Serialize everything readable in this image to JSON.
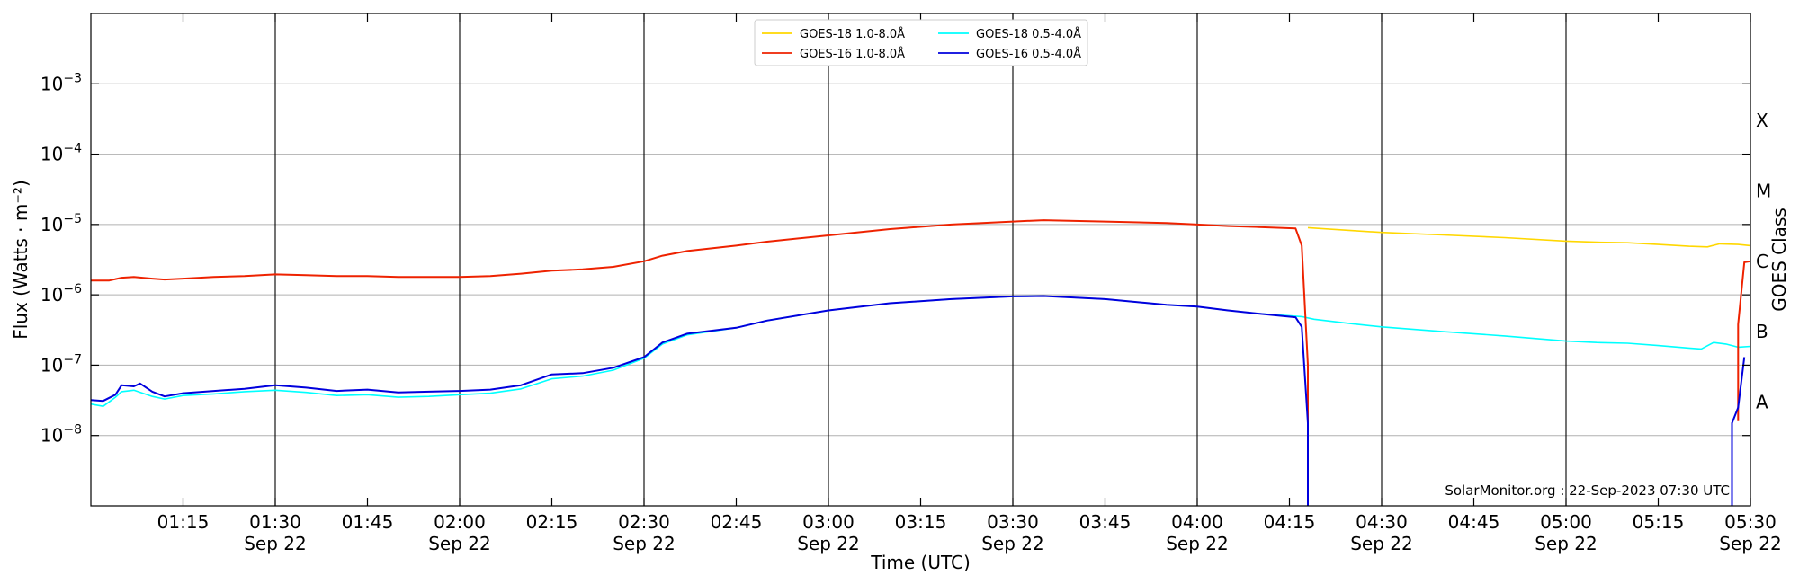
{
  "chart_data": {
    "type": "line",
    "xlabel": "Time (UTC)",
    "ylabel": "Flux (Watts · m⁻²)",
    "right_ylabel": "GOES Class",
    "credit": "SolarMonitor.org : 22-Sep-2023 07:30 UTC",
    "x_range": [
      "01:00",
      "05:30"
    ],
    "ylim": [
      1e-09,
      0.01
    ],
    "yscale": "log",
    "grid": "horizontal gridlines at each decade; vertical lines at labeled 30-minute marks",
    "legend_position": "top-center",
    "y_ticks": [
      {
        "value": 1e-08,
        "base": "10",
        "exp": "−8"
      },
      {
        "value": 1e-07,
        "base": "10",
        "exp": "−7"
      },
      {
        "value": 1e-06,
        "base": "10",
        "exp": "−6"
      },
      {
        "value": 1e-05,
        "base": "10",
        "exp": "−5"
      },
      {
        "value": 0.0001,
        "base": "10",
        "exp": "−4"
      },
      {
        "value": 0.001,
        "base": "10",
        "exp": "−3"
      }
    ],
    "x_ticks": [
      {
        "time": "01:15",
        "label": "01:15",
        "date": ""
      },
      {
        "time": "01:30",
        "label": "01:30",
        "date": "Sep 22"
      },
      {
        "time": "01:45",
        "label": "01:45",
        "date": ""
      },
      {
        "time": "02:00",
        "label": "02:00",
        "date": "Sep 22"
      },
      {
        "time": "02:15",
        "label": "02:15",
        "date": ""
      },
      {
        "time": "02:30",
        "label": "02:30",
        "date": "Sep 22"
      },
      {
        "time": "02:45",
        "label": "02:45",
        "date": ""
      },
      {
        "time": "03:00",
        "label": "03:00",
        "date": "Sep 22"
      },
      {
        "time": "03:15",
        "label": "03:15",
        "date": ""
      },
      {
        "time": "03:30",
        "label": "03:30",
        "date": "Sep 22"
      },
      {
        "time": "03:45",
        "label": "03:45",
        "date": ""
      },
      {
        "time": "04:00",
        "label": "04:00",
        "date": "Sep 22"
      },
      {
        "time": "04:15",
        "label": "04:15",
        "date": ""
      },
      {
        "time": "04:30",
        "label": "04:30",
        "date": "Sep 22"
      },
      {
        "time": "04:45",
        "label": "04:45",
        "date": ""
      },
      {
        "time": "05:00",
        "label": "05:00",
        "date": "Sep 22"
      },
      {
        "time": "05:15",
        "label": "05:15",
        "date": ""
      },
      {
        "time": "05:30",
        "label": "05:30",
        "date": "Sep 22"
      }
    ],
    "goes_classes": [
      {
        "label": "A",
        "value": 3e-08
      },
      {
        "label": "B",
        "value": 3e-07
      },
      {
        "label": "C",
        "value": 3e-06
      },
      {
        "label": "M",
        "value": 3e-05
      },
      {
        "label": "X",
        "value": 0.0003
      }
    ],
    "series": [
      {
        "name": "GOES-18 1.0-8.0Å",
        "color": "#ffd700",
        "points": [
          [
            "04:18",
            9e-06
          ],
          [
            "04:25",
            8.2e-06
          ],
          [
            "04:30",
            7.7e-06
          ],
          [
            "04:40",
            7.1e-06
          ],
          [
            "04:50",
            6.5e-06
          ],
          [
            "05:00",
            5.8e-06
          ],
          [
            "05:05",
            5.6e-06
          ],
          [
            "05:10",
            5.5e-06
          ],
          [
            "05:15",
            5.2e-06
          ],
          [
            "05:20",
            4.9e-06
          ],
          [
            "05:23",
            4.8e-06
          ],
          [
            "05:25",
            5.3e-06
          ],
          [
            "05:28",
            5.2e-06
          ],
          [
            "05:30",
            5e-06
          ]
        ]
      },
      {
        "name": "GOES-18 0.5-4.0Å",
        "color": "#00ffff",
        "points": [
          [
            "01:00",
            2.8e-08
          ],
          [
            "01:02",
            2.6e-08
          ],
          [
            "01:04",
            3.5e-08
          ],
          [
            "01:05",
            4.2e-08
          ],
          [
            "01:07",
            4.4e-08
          ],
          [
            "01:10",
            3.6e-08
          ],
          [
            "01:12",
            3.3e-08
          ],
          [
            "01:15",
            3.7e-08
          ],
          [
            "01:20",
            3.9e-08
          ],
          [
            "01:25",
            4.2e-08
          ],
          [
            "01:30",
            4.4e-08
          ],
          [
            "01:35",
            4.1e-08
          ],
          [
            "01:40",
            3.7e-08
          ],
          [
            "01:45",
            3.8e-08
          ],
          [
            "01:50",
            3.5e-08
          ],
          [
            "01:55",
            3.6e-08
          ],
          [
            "02:00",
            3.8e-08
          ],
          [
            "02:05",
            4e-08
          ],
          [
            "02:10",
            4.6e-08
          ],
          [
            "02:15",
            6.4e-08
          ],
          [
            "02:20",
            7e-08
          ],
          [
            "02:25",
            8.5e-08
          ],
          [
            "02:30",
            1.25e-07
          ],
          [
            "02:33",
            2e-07
          ],
          [
            "02:37",
            2.7e-07
          ],
          [
            "02:45",
            3.4e-07
          ],
          [
            "02:50",
            4.3e-07
          ],
          [
            "03:00",
            6e-07
          ],
          [
            "03:10",
            7.6e-07
          ],
          [
            "03:20",
            8.7e-07
          ],
          [
            "03:30",
            9.5e-07
          ],
          [
            "03:35",
            9.6e-07
          ],
          [
            "03:45",
            8.7e-07
          ],
          [
            "03:55",
            7.2e-07
          ],
          [
            "04:00",
            6.8e-07
          ],
          [
            "04:05",
            6e-07
          ],
          [
            "04:10",
            5.4e-07
          ],
          [
            "04:17",
            4.9e-07
          ],
          [
            "04:19",
            4.5e-07
          ],
          [
            "04:25",
            3.9e-07
          ],
          [
            "04:30",
            3.5e-07
          ],
          [
            "04:40",
            3e-07
          ],
          [
            "04:50",
            2.6e-07
          ],
          [
            "05:00",
            2.2e-07
          ],
          [
            "05:05",
            2.1e-07
          ],
          [
            "05:10",
            2.05e-07
          ],
          [
            "05:15",
            1.9e-07
          ],
          [
            "05:20",
            1.75e-07
          ],
          [
            "05:22",
            1.7e-07
          ],
          [
            "05:24",
            2.1e-07
          ],
          [
            "05:26",
            2e-07
          ],
          [
            "05:28",
            1.8e-07
          ],
          [
            "05:30",
            1.85e-07
          ]
        ]
      },
      {
        "name": "GOES-16 1.0-8.0Å",
        "color": "#ee2200",
        "points": [
          [
            "01:00",
            1.6e-06
          ],
          [
            "01:03",
            1.6e-06
          ],
          [
            "01:05",
            1.75e-06
          ],
          [
            "01:07",
            1.8e-06
          ],
          [
            "01:10",
            1.7e-06
          ],
          [
            "01:12",
            1.65e-06
          ],
          [
            "01:15",
            1.7e-06
          ],
          [
            "01:20",
            1.8e-06
          ],
          [
            "01:25",
            1.85e-06
          ],
          [
            "01:30",
            1.95e-06
          ],
          [
            "01:35",
            1.9e-06
          ],
          [
            "01:40",
            1.85e-06
          ],
          [
            "01:45",
            1.85e-06
          ],
          [
            "01:50",
            1.8e-06
          ],
          [
            "01:55",
            1.8e-06
          ],
          [
            "02:00",
            1.8e-06
          ],
          [
            "02:05",
            1.85e-06
          ],
          [
            "02:10",
            2e-06
          ],
          [
            "02:15",
            2.2e-06
          ],
          [
            "02:20",
            2.3e-06
          ],
          [
            "02:25",
            2.5e-06
          ],
          [
            "02:30",
            3e-06
          ],
          [
            "02:33",
            3.6e-06
          ],
          [
            "02:37",
            4.2e-06
          ],
          [
            "02:45",
            5e-06
          ],
          [
            "02:50",
            5.7e-06
          ],
          [
            "03:00",
            7e-06
          ],
          [
            "03:10",
            8.6e-06
          ],
          [
            "03:20",
            1e-05
          ],
          [
            "03:30",
            1.1e-05
          ],
          [
            "03:35",
            1.15e-05
          ],
          [
            "03:45",
            1.1e-05
          ],
          [
            "03:55",
            1.05e-05
          ],
          [
            "04:00",
            1e-05
          ],
          [
            "04:05",
            9.5e-06
          ],
          [
            "04:10",
            9.2e-06
          ],
          [
            "04:16",
            8.8e-06
          ],
          [
            "04:17",
            5e-06
          ],
          [
            "04:18",
            1e-07
          ],
          [
            "04:18",
            2e-08
          ],
          [
            "04:18",
            1.1e-08
          ],
          null,
          [
            "05:28",
            1.6e-08
          ],
          [
            "05:28",
            3.8e-07
          ],
          [
            "05:29",
            2.9e-06
          ],
          [
            "05:30",
            3e-06
          ]
        ]
      },
      {
        "name": "GOES-16 0.5-4.0Å",
        "color": "#0000dd",
        "points": [
          [
            "01:00",
            3.2e-08
          ],
          [
            "01:02",
            3.1e-08
          ],
          [
            "01:04",
            3.8e-08
          ],
          [
            "01:05",
            5.2e-08
          ],
          [
            "01:07",
            5e-08
          ],
          [
            "01:08",
            5.5e-08
          ],
          [
            "01:10",
            4.2e-08
          ],
          [
            "01:12",
            3.6e-08
          ],
          [
            "01:15",
            4e-08
          ],
          [
            "01:20",
            4.3e-08
          ],
          [
            "01:25",
            4.6e-08
          ],
          [
            "01:30",
            5.2e-08
          ],
          [
            "01:35",
            4.8e-08
          ],
          [
            "01:40",
            4.3e-08
          ],
          [
            "01:45",
            4.5e-08
          ],
          [
            "01:50",
            4.1e-08
          ],
          [
            "01:55",
            4.2e-08
          ],
          [
            "02:00",
            4.3e-08
          ],
          [
            "02:05",
            4.5e-08
          ],
          [
            "02:10",
            5.2e-08
          ],
          [
            "02:15",
            7.4e-08
          ],
          [
            "02:20",
            7.7e-08
          ],
          [
            "02:25",
            9.2e-08
          ],
          [
            "02:30",
            1.3e-07
          ],
          [
            "02:33",
            2.1e-07
          ],
          [
            "02:37",
            2.8e-07
          ],
          [
            "02:45",
            3.4e-07
          ],
          [
            "02:50",
            4.3e-07
          ],
          [
            "03:00",
            6e-07
          ],
          [
            "03:10",
            7.6e-07
          ],
          [
            "03:20",
            8.7e-07
          ],
          [
            "03:30",
            9.5e-07
          ],
          [
            "03:35",
            9.6e-07
          ],
          [
            "03:45",
            8.7e-07
          ],
          [
            "03:55",
            7.2e-07
          ],
          [
            "04:00",
            6.8e-07
          ],
          [
            "04:05",
            6e-07
          ],
          [
            "04:10",
            5.4e-07
          ],
          [
            "04:16",
            4.8e-07
          ],
          [
            "04:17",
            3.5e-07
          ],
          [
            "04:18",
            1.5e-08
          ],
          [
            "04:18",
            1e-09
          ],
          null,
          [
            "05:27",
            1e-09
          ],
          [
            "05:27",
            1.5e-08
          ],
          [
            "05:28",
            2.5e-08
          ],
          [
            "05:29",
            1.3e-07
          ]
        ]
      }
    ]
  }
}
